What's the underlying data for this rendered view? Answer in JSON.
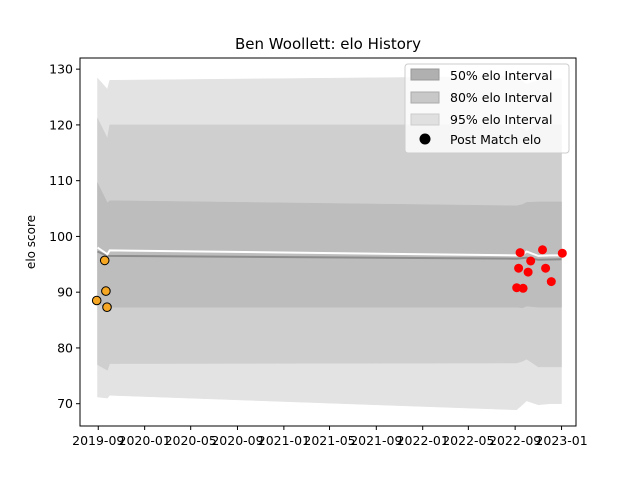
{
  "chart_data": {
    "type": "line",
    "title": "Ben Woollett: elo History",
    "xlabel": "",
    "ylabel": "elo score",
    "ylim": [
      66,
      132
    ],
    "xlim": [
      "2019-07-15",
      "2023-02-08"
    ],
    "x_ticks": [
      "2019-09",
      "2020-01",
      "2020-05",
      "2020-09",
      "2021-01",
      "2021-05",
      "2021-09",
      "2022-01",
      "2022-05",
      "2022-09",
      "2023-01"
    ],
    "y_ticks": [
      70,
      80,
      90,
      100,
      110,
      120,
      130
    ],
    "grid": false,
    "legend_position": "top-right",
    "legend": {
      "i50": "50% elo Interval",
      "i80": "80% elo Interval",
      "i95": "95% elo Interval",
      "post": "Post Match elo"
    },
    "colors": {
      "band95": "#e3e3e3",
      "band80": "#cfcfcf",
      "band50": "#bdbdbd",
      "mean": "#8c8c8c",
      "median": "#ffffff",
      "early_points": "#f5a623",
      "late_points": "#ff0000"
    },
    "bands": {
      "x": [
        "2019-08-30",
        "2019-09-25",
        "2019-10-01",
        "2022-09-05",
        "2022-09-20",
        "2022-10-01",
        "2022-11-01",
        "2022-12-01",
        "2023-01-01"
      ],
      "p95": [
        [
          71.2,
          128.4
        ],
        [
          71.0,
          126.4
        ],
        [
          71.5,
          128.0
        ],
        [
          68.9,
          128.7
        ],
        [
          69.8,
          127.8
        ],
        [
          70.5,
          127.3
        ],
        [
          69.8,
          128.0
        ],
        [
          70.0,
          128.2
        ],
        [
          70.0,
          128.3
        ]
      ],
      "p80": [
        [
          77.0,
          121.2
        ],
        [
          76.0,
          117.6
        ],
        [
          77.2,
          120.0
        ],
        [
          77.3,
          120.0
        ],
        [
          77.6,
          119.5
        ],
        [
          78.0,
          118.8
        ],
        [
          76.6,
          120.0
        ],
        [
          76.6,
          120.0
        ],
        [
          76.6,
          120.0
        ]
      ],
      "p50": [
        [
          87.8,
          109.6
        ],
        [
          87.3,
          106.0
        ],
        [
          87.3,
          106.4
        ],
        [
          87.3,
          105.5
        ],
        [
          87.2,
          105.7
        ],
        [
          87.5,
          106.1
        ],
        [
          87.3,
          106.2
        ],
        [
          87.3,
          106.2
        ],
        [
          87.3,
          106.2
        ]
      ]
    },
    "mean_line": {
      "x": [
        "2019-08-30",
        "2019-09-25",
        "2022-09-05",
        "2022-10-01",
        "2022-11-01",
        "2023-01-01"
      ],
      "y": [
        97.3,
        96.5,
        96.0,
        96.2,
        95.8,
        95.9
      ]
    },
    "median_line": {
      "x": [
        "2019-08-30",
        "2019-09-25",
        "2019-10-01",
        "2022-09-05",
        "2022-09-20",
        "2022-10-01",
        "2022-11-01",
        "2022-12-01",
        "2023-01-01"
      ],
      "y": [
        98.0,
        96.8,
        97.5,
        96.6,
        96.7,
        97.3,
        96.5,
        96.6,
        96.6
      ]
    },
    "points_early": [
      {
        "x": "2019-08-28",
        "y": 88.5
      },
      {
        "x": "2019-09-18",
        "y": 95.7
      },
      {
        "x": "2019-09-21",
        "y": 90.2
      },
      {
        "x": "2019-09-24",
        "y": 87.3
      }
    ],
    "points_late": [
      {
        "x": "2022-09-05",
        "y": 90.8
      },
      {
        "x": "2022-09-10",
        "y": 94.3
      },
      {
        "x": "2022-09-14",
        "y": 97.1
      },
      {
        "x": "2022-09-22",
        "y": 90.7
      },
      {
        "x": "2022-10-05",
        "y": 93.6
      },
      {
        "x": "2022-10-12",
        "y": 95.6
      },
      {
        "x": "2022-11-12",
        "y": 97.6
      },
      {
        "x": "2022-11-20",
        "y": 94.3
      },
      {
        "x": "2022-12-05",
        "y": 91.9
      },
      {
        "x": "2023-01-03",
        "y": 97.0
      }
    ]
  }
}
